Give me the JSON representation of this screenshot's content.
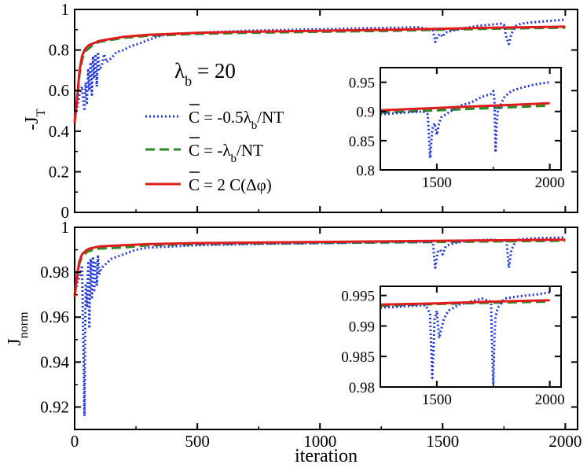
{
  "chart_data": {
    "type": "line",
    "annotation": {
      "main": "λ",
      "sub": "b",
      "tail": " = 20"
    },
    "colors": {
      "dotted": "#1f35e0",
      "dashed": "#2a8a25",
      "solid": "#e01b1b"
    },
    "legend": [
      {
        "over": "C",
        "pre": " = -0.5λ",
        "sub": "b",
        "post": "/NT",
        "style": "dotted"
      },
      {
        "over": "C",
        "pre": " = -λ",
        "sub": "b",
        "post": "/NT",
        "style": "dashed"
      },
      {
        "over": "C",
        "pre": " = 2 C(Δφ)",
        "sub": "",
        "post": "",
        "style": "solid"
      }
    ],
    "xlabel": "iteration",
    "xlim": [
      0,
      2000
    ],
    "xticks": [
      "0",
      "500",
      "1000",
      "1500",
      "2000"
    ],
    "top": {
      "ylabel_main": "-J",
      "ylabel_sub": "T",
      "ylim": [
        0,
        1
      ],
      "yticks": [
        "0",
        "0.2",
        "0.4",
        "0.6",
        "0.8",
        "1"
      ],
      "series": [
        {
          "name": "dotted",
          "x": [
            0,
            10,
            20,
            30,
            35,
            40,
            45,
            50,
            55,
            60,
            65,
            70,
            75,
            80,
            85,
            90,
            95,
            100,
            110,
            120,
            130,
            150,
            170,
            200,
            230,
            260,
            300,
            350,
            400,
            500,
            700,
            900,
            1100,
            1300,
            1400,
            1460,
            1470,
            1480,
            1490,
            1500,
            1510,
            1520,
            1540,
            1560,
            1600,
            1650,
            1700,
            1740,
            1750,
            1760,
            1770,
            1780,
            1790,
            1800,
            1820,
            1850,
            1900,
            1950,
            2000
          ],
          "y": [
            0.48,
            0.52,
            0.58,
            0.62,
            0.55,
            0.5,
            0.64,
            0.54,
            0.7,
            0.6,
            0.74,
            0.58,
            0.77,
            0.66,
            0.78,
            0.62,
            0.79,
            0.7,
            0.72,
            0.78,
            0.74,
            0.76,
            0.79,
            0.8,
            0.82,
            0.83,
            0.85,
            0.87,
            0.88,
            0.885,
            0.895,
            0.9,
            0.905,
            0.91,
            0.912,
            0.9,
            0.84,
            0.87,
            0.88,
            0.865,
            0.885,
            0.89,
            0.895,
            0.9,
            0.91,
            0.92,
            0.925,
            0.93,
            0.925,
            0.86,
            0.83,
            0.88,
            0.9,
            0.92,
            0.93,
            0.935,
            0.94,
            0.945,
            0.95
          ]
        },
        {
          "name": "dashed",
          "x": [
            0,
            10,
            20,
            30,
            40,
            50,
            60,
            70,
            80,
            100,
            150,
            200,
            300,
            400,
            500,
            700,
            1000,
            1300,
            1500,
            1700,
            2000
          ],
          "y": [
            0.45,
            0.55,
            0.68,
            0.75,
            0.79,
            0.8,
            0.81,
            0.82,
            0.83,
            0.84,
            0.85,
            0.86,
            0.87,
            0.875,
            0.88,
            0.885,
            0.89,
            0.895,
            0.9,
            0.905,
            0.91
          ]
        },
        {
          "name": "solid",
          "x": [
            0,
            10,
            20,
            30,
            40,
            50,
            60,
            70,
            80,
            100,
            150,
            200,
            300,
            400,
            500,
            700,
            1000,
            1300,
            1500,
            1700,
            2000
          ],
          "y": [
            0.44,
            0.56,
            0.7,
            0.77,
            0.8,
            0.815,
            0.825,
            0.83,
            0.835,
            0.845,
            0.855,
            0.865,
            0.875,
            0.88,
            0.885,
            0.89,
            0.895,
            0.9,
            0.905,
            0.91,
            0.915
          ]
        }
      ],
      "inset": {
        "xlim": [
          1250,
          2050
        ],
        "ylim": [
          0.8,
          0.975
        ],
        "xticks": [
          "1500",
          "2000"
        ],
        "yticks": [
          "0.8",
          "0.85",
          "0.9",
          "0.95"
        ],
        "series": [
          {
            "name": "dotted",
            "x": [
              1250,
              1350,
              1440,
              1460,
              1470,
              1480,
              1490,
              1500,
              1510,
              1520,
              1540,
              1560,
              1600,
              1650,
              1700,
              1740,
              1750,
              1755,
              1760,
              1765,
              1770,
              1780,
              1800,
              1830,
              1870,
              1920,
              1960,
              2000
            ],
            "y": [
              0.895,
              0.898,
              0.9,
              0.895,
              0.82,
              0.87,
              0.88,
              0.86,
              0.88,
              0.89,
              0.895,
              0.9,
              0.91,
              0.915,
              0.925,
              0.93,
              0.935,
              0.92,
              0.83,
              0.88,
              0.9,
              0.91,
              0.925,
              0.935,
              0.94,
              0.945,
              0.948,
              0.95
            ]
          },
          {
            "name": "dashed",
            "x": [
              1250,
              1500,
              1750,
              2000
            ],
            "y": [
              0.898,
              0.902,
              0.906,
              0.91
            ]
          },
          {
            "name": "solid",
            "x": [
              1250,
              1500,
              1750,
              2000
            ],
            "y": [
              0.902,
              0.906,
              0.91,
              0.914
            ]
          }
        ]
      }
    },
    "bottom": {
      "ylabel_main": "J",
      "ylabel_sub": "norm",
      "ylim": [
        0.91,
        1.0
      ],
      "yticks": [
        "0.92",
        "0.94",
        "0.96",
        "0.98",
        "1"
      ],
      "series": [
        {
          "name": "dotted",
          "x": [
            0,
            10,
            20,
            30,
            35,
            40,
            45,
            50,
            55,
            60,
            65,
            70,
            75,
            80,
            85,
            90,
            95,
            100,
            110,
            120,
            130,
            150,
            200,
            250,
            300,
            400,
            500,
            700,
            1000,
            1300,
            1460,
            1470,
            1480,
            1490,
            1500,
            1510,
            1520,
            1550,
            1600,
            1700,
            1760,
            1770,
            1780,
            1790,
            1800,
            1850,
            1900,
            2000
          ],
          "y": [
            0.97,
            0.975,
            0.978,
            0.983,
            0.95,
            0.916,
            0.975,
            0.965,
            0.984,
            0.955,
            0.986,
            0.968,
            0.987,
            0.972,
            0.985,
            0.974,
            0.987,
            0.979,
            0.982,
            0.983,
            0.984,
            0.986,
            0.988,
            0.99,
            0.991,
            0.9915,
            0.992,
            0.9925,
            0.993,
            0.9935,
            0.9935,
            0.982,
            0.989,
            0.99,
            0.988,
            0.991,
            0.992,
            0.993,
            0.994,
            0.9945,
            0.994,
            0.982,
            0.99,
            0.992,
            0.9945,
            0.995,
            0.9952,
            0.9955
          ]
        },
        {
          "name": "dashed",
          "x": [
            0,
            10,
            20,
            30,
            40,
            50,
            60,
            80,
            100,
            200,
            300,
            500,
            1000,
            1500,
            2000
          ],
          "y": [
            0.97,
            0.978,
            0.984,
            0.987,
            0.988,
            0.989,
            0.9895,
            0.99,
            0.9905,
            0.991,
            0.992,
            0.9925,
            0.993,
            0.9935,
            0.994
          ]
        },
        {
          "name": "solid",
          "x": [
            0,
            10,
            20,
            30,
            40,
            50,
            60,
            80,
            100,
            200,
            300,
            500,
            1000,
            1500,
            2000
          ],
          "y": [
            0.969,
            0.979,
            0.985,
            0.988,
            0.989,
            0.99,
            0.9905,
            0.991,
            0.9915,
            0.992,
            0.9925,
            0.993,
            0.9935,
            0.994,
            0.9945
          ]
        }
      ],
      "inset": {
        "xlim": [
          1250,
          2050
        ],
        "ylim": [
          0.98,
          0.9965
        ],
        "xticks": [
          "1500",
          "2000"
        ],
        "yticks": [
          "0.98",
          "0.985",
          "0.99",
          "0.995"
        ],
        "series": [
          {
            "name": "dotted",
            "x": [
              1250,
              1350,
              1450,
              1470,
              1480,
              1485,
              1490,
              1500,
              1510,
              1520,
              1530,
              1550,
              1600,
              1650,
              1700,
              1740,
              1745,
              1750,
              1755,
              1760,
              1770,
              1790,
              1800,
              1850,
              1900,
              1950,
              2000
            ],
            "y": [
              0.993,
              0.9932,
              0.9934,
              0.992,
              0.9815,
              0.986,
              0.991,
              0.9925,
              0.988,
              0.9895,
              0.991,
              0.9925,
              0.9935,
              0.994,
              0.9945,
              0.994,
              0.986,
              0.9805,
              0.988,
              0.9915,
              0.993,
              0.994,
              0.9945,
              0.9948,
              0.995,
              0.9952,
              0.9955
            ]
          },
          {
            "name": "dashed",
            "x": [
              1250,
              1500,
              1750,
              2000
            ],
            "y": [
              0.9933,
              0.9936,
              0.9938,
              0.994
            ]
          },
          {
            "name": "solid",
            "x": [
              1250,
              1500,
              1750,
              2000
            ],
            "y": [
              0.9935,
              0.9937,
              0.994,
              0.9942
            ]
          }
        ]
      }
    }
  }
}
